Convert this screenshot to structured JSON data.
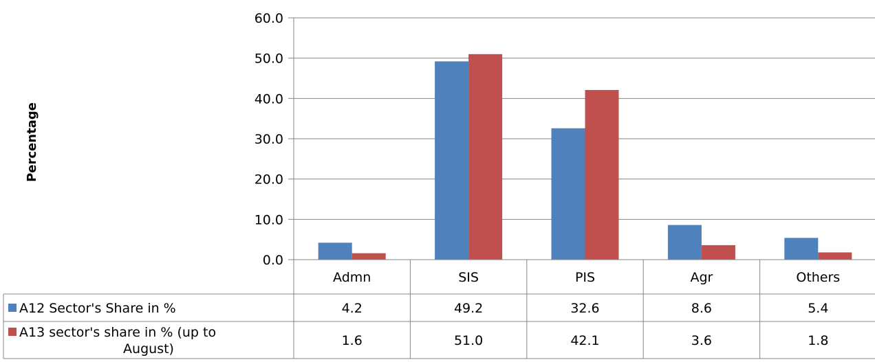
{
  "chart_data": {
    "type": "bar",
    "title": "",
    "xlabel": "",
    "ylabel": "Percentage",
    "ylim": [
      0,
      60
    ],
    "yticks": [
      "0.0",
      "10.0",
      "20.0",
      "30.0",
      "40.0",
      "50.0",
      "60.0"
    ],
    "grid": true,
    "legend": "data-table-left",
    "categories": [
      "Admn",
      "SIS",
      "PIS",
      "Agr",
      "Others"
    ],
    "series": [
      {
        "name": "A12 Sector's Share in %",
        "name_lines": [
          "A12 Sector's Share in %"
        ],
        "color": "#4f81bd",
        "values": [
          4.2,
          49.2,
          32.6,
          8.6,
          5.4
        ],
        "labels": [
          "4.2",
          "49.2",
          "32.6",
          "8.6",
          "5.4"
        ]
      },
      {
        "name": "A13 sector's share in % (up to August)",
        "name_lines": [
          "A13 sector's share in % (up to",
          "August)"
        ],
        "color": "#c0504d",
        "values": [
          1.6,
          51.0,
          42.1,
          3.6,
          1.8
        ],
        "labels": [
          "1.6",
          "51.0",
          "42.1",
          "3.6",
          "1.8"
        ]
      }
    ]
  }
}
